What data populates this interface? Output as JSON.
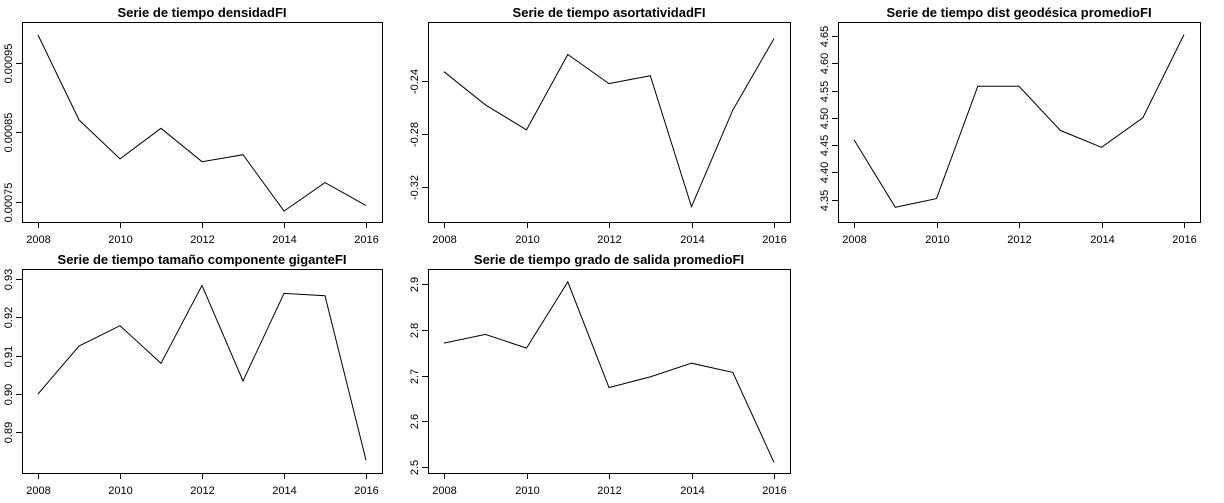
{
  "chart_data": [
    {
      "type": "line",
      "title": "Serie de tiempo densidadFI",
      "x": [
        2008,
        2009,
        2010,
        2011,
        2012,
        2013,
        2014,
        2015,
        2016
      ],
      "values": [
        0.00099,
        0.000868,
        0.000812,
        0.000856,
        0.000808,
        0.000818,
        0.000737,
        0.000778,
        0.000745
      ],
      "xticks": [
        "2008",
        "2010",
        "2012",
        "2014",
        "2016"
      ],
      "yticks": [
        "0.00075",
        "0.00085",
        "0.00095"
      ],
      "xlim": [
        2008,
        2016
      ],
      "ylim": [
        0.00073,
        0.001
      ],
      "grid": false,
      "xlabel": "",
      "ylabel": ""
    },
    {
      "type": "line",
      "title": "Serie de tiempo asortatividadFI",
      "x": [
        2008,
        2009,
        2010,
        2011,
        2012,
        2013,
        2014,
        2015,
        2016
      ],
      "values": [
        -0.233,
        -0.258,
        -0.277,
        -0.22,
        -0.242,
        -0.236,
        -0.335,
        -0.262,
        -0.208
      ],
      "xticks": [
        "2008",
        "2010",
        "2012",
        "2014",
        "2016"
      ],
      "yticks": [
        "-0.32",
        "-0.28",
        "-0.24"
      ],
      "xlim": [
        2008,
        2016
      ],
      "ylim": [
        -0.342,
        -0.2
      ],
      "grid": false,
      "xlabel": "",
      "ylabel": ""
    },
    {
      "type": "line",
      "title": "Serie de tiempo dist geodésica promedioFI",
      "x": [
        2008,
        2009,
        2010,
        2011,
        2012,
        2013,
        2014,
        2015,
        2016
      ],
      "values": [
        4.46,
        4.336,
        4.352,
        4.558,
        4.558,
        4.477,
        4.446,
        4.5,
        4.653
      ],
      "xticks": [
        "2008",
        "2010",
        "2012",
        "2014",
        "2016"
      ],
      "yticks": [
        "4.35",
        "4.40",
        "4.45",
        "4.50",
        "4.55",
        "4.60",
        "4.65"
      ],
      "xlim": [
        2008,
        2016
      ],
      "ylim": [
        4.32,
        4.665
      ],
      "grid": false,
      "xlabel": "",
      "ylabel": ""
    },
    {
      "type": "line",
      "title": "Serie de tiempo tamaño componente giganteFI",
      "x": [
        2008,
        2009,
        2010,
        2011,
        2012,
        2013,
        2014,
        2015,
        2016
      ],
      "values": [
        0.9,
        0.9125,
        0.9178,
        0.908,
        0.9283,
        0.9034,
        0.9262,
        0.9256,
        0.8828
      ],
      "xticks": [
        "2008",
        "2010",
        "2012",
        "2014",
        "2016"
      ],
      "yticks": [
        "0.89",
        "0.90",
        "0.91",
        "0.92",
        "0.93"
      ],
      "xlim": [
        2008,
        2016
      ],
      "ylim": [
        0.881,
        0.931
      ],
      "grid": false,
      "xlabel": "",
      "ylabel": ""
    },
    {
      "type": "line",
      "title": "Serie de tiempo grado de salida promedioFI",
      "x": [
        2008,
        2009,
        2010,
        2011,
        2012,
        2013,
        2014,
        2015,
        2016
      ],
      "values": [
        2.771,
        2.79,
        2.76,
        2.905,
        2.674,
        2.697,
        2.727,
        2.707,
        2.51
      ],
      "xticks": [
        "2008",
        "2010",
        "2012",
        "2014",
        "2016"
      ],
      "yticks": [
        "2.5",
        "2.6",
        "2.7",
        "2.8",
        "2.9"
      ],
      "xlim": [
        2008,
        2016
      ],
      "ylim": [
        2.5,
        2.92
      ],
      "grid": false,
      "xlabel": "",
      "ylabel": ""
    }
  ]
}
